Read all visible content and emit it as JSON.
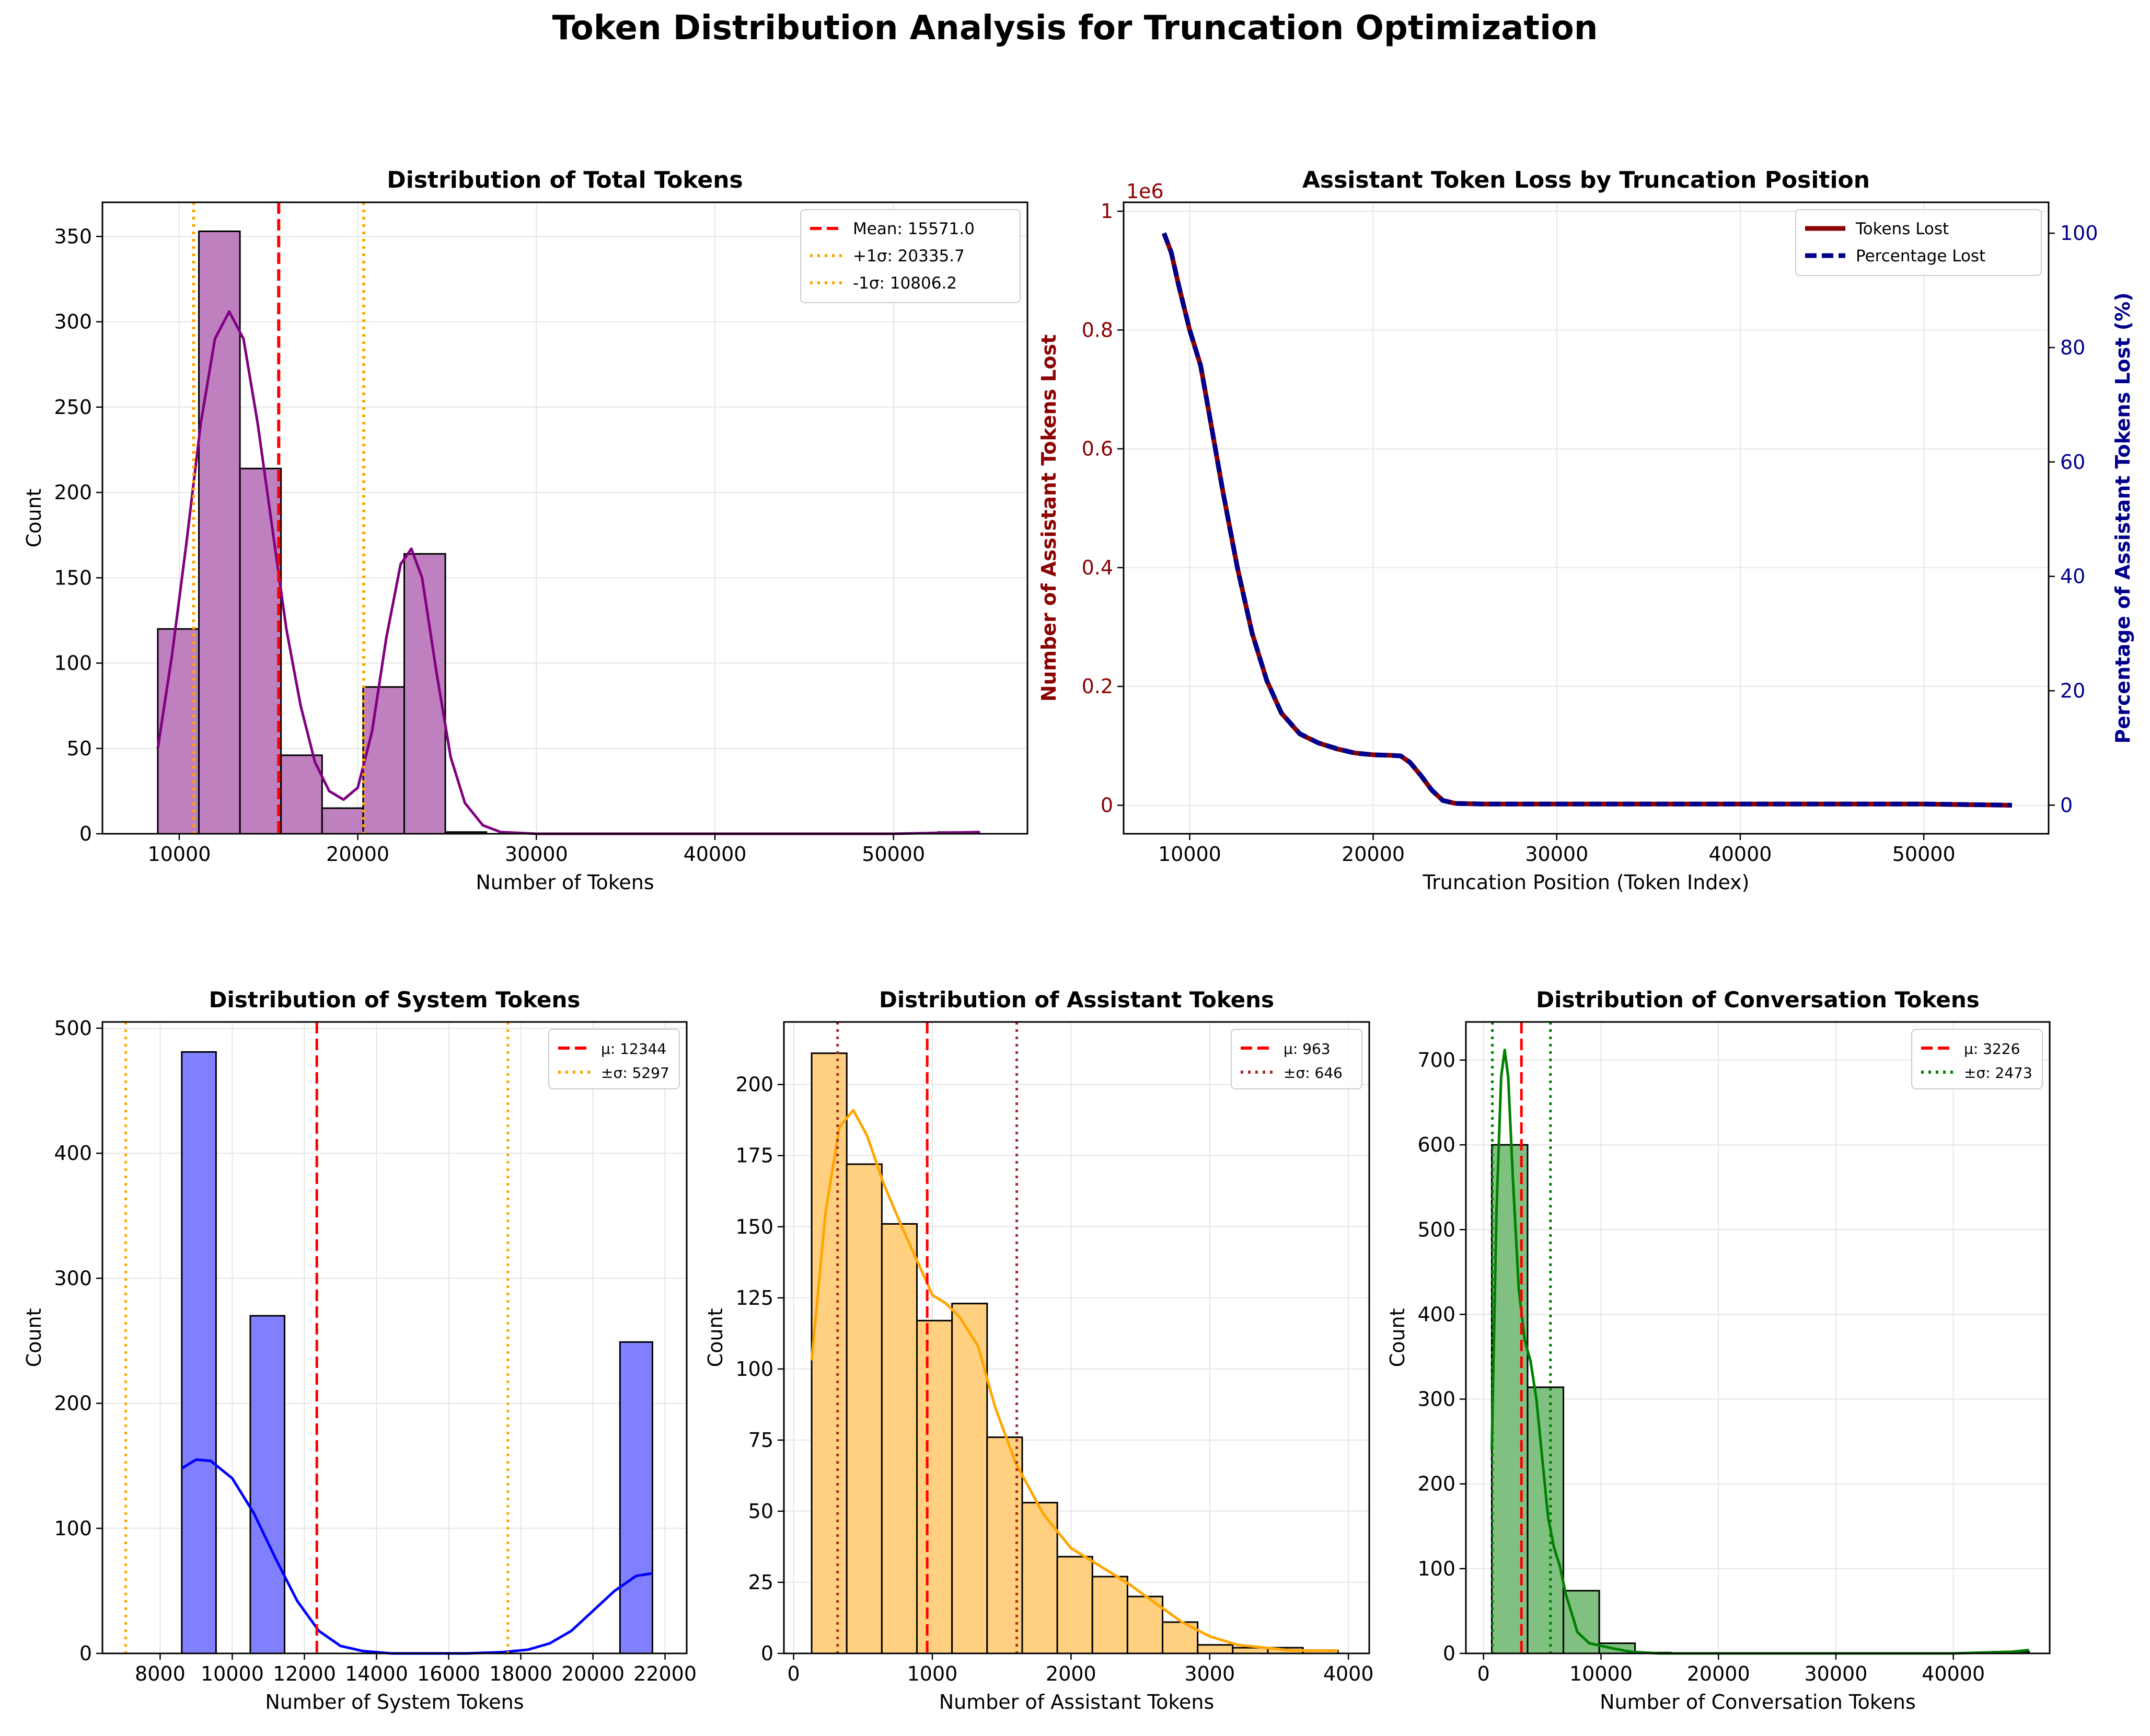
{
  "figure": {
    "title": "Token Distribution Analysis for Truncation Optimization"
  },
  "chart_data": [
    {
      "id": "total",
      "type": "bar",
      "subtype": "histogram",
      "title": "Distribution of Total Tokens",
      "xlabel": "Number of Tokens",
      "ylabel": "Count",
      "xlim": [
        5700,
        57500
      ],
      "ylim": [
        0,
        370
      ],
      "xticks": [
        10000,
        20000,
        30000,
        40000,
        50000
      ],
      "yticks": [
        0,
        50,
        100,
        150,
        200,
        250,
        300,
        350
      ],
      "grid": true,
      "bar_color": "#bf80bf",
      "kde_color": "#800080",
      "bin_edges": [
        8800,
        11100,
        13400,
        15700,
        18000,
        20300,
        22600,
        24900,
        27200,
        29500,
        31800,
        34100,
        36400,
        38700,
        41000,
        43300,
        45600,
        47900,
        50200,
        52500,
        54800
      ],
      "counts": [
        120,
        353,
        214,
        46,
        15,
        86,
        164,
        1,
        0,
        0,
        0,
        0,
        0,
        0,
        0,
        0,
        0,
        0,
        0,
        1
      ],
      "kde": {
        "x": [
          8800,
          9600,
          10400,
          11200,
          12000,
          12800,
          13600,
          14400,
          15200,
          16000,
          16800,
          17600,
          18400,
          19200,
          20000,
          20800,
          21600,
          22400,
          23000,
          23600,
          24400,
          25200,
          26000,
          27000,
          28000,
          30000,
          35000,
          40000,
          45000,
          50000,
          54800
        ],
        "y": [
          50,
          105,
          170,
          240,
          290,
          306,
          290,
          240,
          180,
          120,
          75,
          42,
          25,
          20,
          27,
          60,
          115,
          158,
          167,
          150,
          95,
          45,
          18,
          5,
          1,
          0,
          0,
          0,
          0,
          0,
          1
        ]
      },
      "vlines": [
        {
          "label": "Mean: 15571.0",
          "x": 15571.0,
          "color": "#ff0000",
          "style": "dashed"
        },
        {
          "label": "+1σ: 20335.7",
          "x": 20335.7,
          "color": "#ffa500",
          "style": "dotted"
        },
        {
          "label": "-1σ: 10806.2",
          "x": 10806.2,
          "color": "#ffa500",
          "style": "dotted"
        }
      ],
      "legend_loc": "top-right"
    },
    {
      "id": "loss",
      "type": "line",
      "title": "Assistant Token Loss by Truncation Position",
      "xlabel": "Truncation Position (Token Index)",
      "ylabel": "Number of Assistant Tokens Lost",
      "ylabel_right": "Percentage of Assistant Tokens Lost (%)",
      "offset_text": "1e6",
      "xlim": [
        6400,
        56800
      ],
      "ylim": [
        -0.048,
        1.015
      ],
      "ylim_right": [
        -5,
        105.4
      ],
      "xticks": [
        10000,
        20000,
        30000,
        40000,
        50000
      ],
      "yticks": [
        0.0,
        0.2,
        0.4,
        0.6,
        0.8,
        1.0
      ],
      "yticks_right": [
        0,
        20,
        40,
        60,
        80,
        100
      ],
      "grid": true,
      "x": [
        8600,
        9000,
        9400,
        10000,
        10600,
        11000,
        11800,
        12600,
        13400,
        14200,
        15000,
        16000,
        17000,
        18000,
        19000,
        20000,
        21000,
        21500,
        22000,
        22600,
        23200,
        23800,
        24500,
        26000,
        30000,
        35000,
        40000,
        45000,
        50000,
        54800
      ],
      "series": [
        {
          "name": "Tokens Lost",
          "color": "#8b0000",
          "style": "solid",
          "axis": "left",
          "values": [
            0.963,
            0.93,
            0.875,
            0.8,
            0.74,
            0.67,
            0.53,
            0.4,
            0.29,
            0.21,
            0.155,
            0.12,
            0.105,
            0.095,
            0.088,
            0.085,
            0.084,
            0.083,
            0.072,
            0.05,
            0.025,
            0.008,
            0.003,
            0.002,
            0.002,
            0.002,
            0.002,
            0.002,
            0.002,
            0.0
          ]
        },
        {
          "name": "Percentage Lost",
          "color": "#00008b",
          "style": "dashed",
          "axis": "right",
          "values": [
            100,
            96.6,
            90.9,
            83.1,
            76.8,
            69.6,
            55.0,
            41.5,
            30.1,
            21.8,
            16.1,
            12.5,
            10.9,
            9.9,
            9.1,
            8.8,
            8.7,
            8.6,
            7.5,
            5.2,
            2.6,
            0.8,
            0.3,
            0.2,
            0.2,
            0.2,
            0.2,
            0.2,
            0.2,
            0.0
          ]
        }
      ],
      "legend_loc": "top-right"
    },
    {
      "id": "system",
      "type": "bar",
      "subtype": "histogram",
      "title": "Distribution of System Tokens",
      "xlabel": "Number of System Tokens",
      "ylabel": "Count",
      "xlim": [
        6400,
        22600
      ],
      "ylim": [
        0,
        505
      ],
      "xticks": [
        8000,
        10000,
        12000,
        14000,
        16000,
        18000,
        20000,
        22000
      ],
      "yticks": [
        0,
        100,
        200,
        300,
        400,
        500
      ],
      "grid": true,
      "bar_color": "#8080ff",
      "kde_color": "#0000ff",
      "bin_edges": [
        8600,
        9550,
        10500,
        11450,
        12400,
        13350,
        14300,
        15250,
        16200,
        17150,
        18100,
        19050,
        20000,
        20750,
        21650
      ],
      "counts": [
        481,
        0,
        270,
        0,
        0,
        0,
        0,
        0,
        0,
        0,
        0,
        0,
        0,
        249
      ],
      "kde": {
        "x": [
          8600,
          9000,
          9400,
          10000,
          10600,
          11200,
          11800,
          12400,
          13000,
          13600,
          14400,
          15500,
          16500,
          17500,
          18200,
          18800,
          19400,
          20000,
          20600,
          21200,
          21650
        ],
        "y": [
          148,
          155,
          154,
          140,
          112,
          76,
          42,
          18,
          6,
          2,
          0,
          0,
          0,
          1,
          3,
          8,
          18,
          34,
          50,
          62,
          64
        ]
      },
      "vlines": [
        {
          "label": "μ: 12344",
          "x": 12344,
          "color": "#ff0000",
          "style": "dashed"
        },
        {
          "label": "±σ: 5297",
          "x": 17641,
          "color": "#ffa500",
          "style": "dotted"
        },
        {
          "label": "",
          "x": 7047,
          "color": "#ffa500",
          "style": "dotted"
        }
      ],
      "legend_loc": "top-right"
    },
    {
      "id": "assistant",
      "type": "bar",
      "subtype": "histogram",
      "title": "Distribution of Assistant Tokens",
      "xlabel": "Number of Assistant Tokens",
      "ylabel": "Count",
      "xlim": [
        -70,
        4150
      ],
      "ylim": [
        0,
        222
      ],
      "xticks": [
        0,
        1000,
        2000,
        3000,
        4000
      ],
      "yticks": [
        0,
        25,
        50,
        75,
        100,
        125,
        150,
        175,
        200
      ],
      "grid": true,
      "bar_color": "#ffd080",
      "kde_color": "#ffa500",
      "bin_edges": [
        130,
        383,
        636,
        889,
        1142,
        1395,
        1648,
        1901,
        2154,
        2407,
        2660,
        2913,
        3166,
        3419,
        3672,
        3925
      ],
      "counts": [
        211,
        172,
        151,
        117,
        123,
        76,
        53,
        34,
        27,
        20,
        11,
        3,
        2,
        2,
        1
      ],
      "kde": {
        "x": [
          130,
          230,
          330,
          430,
          530,
          650,
          780,
          900,
          1000,
          1100,
          1200,
          1330,
          1450,
          1600,
          1800,
          2000,
          2200,
          2400,
          2600,
          2800,
          3000,
          3200,
          3400,
          3600,
          3800,
          3925
        ],
        "y": [
          103,
          155,
          185,
          191,
          182,
          165,
          150,
          137,
          126,
          123,
          118,
          108,
          87,
          67,
          49,
          37,
          31,
          25,
          18,
          11,
          6,
          3,
          2,
          1,
          1,
          1
        ]
      },
      "vlines": [
        {
          "label": "μ: 963",
          "x": 963,
          "color": "#ff0000",
          "style": "dashed"
        },
        {
          "label": "±σ: 646",
          "x": 1609,
          "color": "#a52a2a",
          "style": "dotted"
        },
        {
          "label": "",
          "x": 317,
          "color": "#a52a2a",
          "style": "dotted"
        }
      ],
      "legend_loc": "top-right"
    },
    {
      "id": "conversation",
      "type": "bar",
      "subtype": "histogram",
      "title": "Distribution of Conversation Tokens",
      "xlabel": "Number of Conversation Tokens",
      "ylabel": "Count",
      "xlim": [
        -1500,
        48200
      ],
      "ylim": [
        0,
        745
      ],
      "xticks": [
        0,
        10000,
        20000,
        30000,
        40000
      ],
      "yticks": [
        0,
        100,
        200,
        300,
        400,
        500,
        600,
        700
      ],
      "grid": true,
      "bar_color": "#80c080",
      "kde_color": "#008000",
      "bin_edges": [
        700,
        3750,
        6800,
        9850,
        12900,
        15950,
        19000,
        22050,
        25100,
        28150,
        31200,
        34250,
        37300,
        40350,
        43400,
        46450
      ],
      "counts": [
        600,
        314,
        74,
        12,
        1,
        0,
        0,
        0,
        0,
        0,
        0,
        0,
        0,
        0,
        2
      ],
      "kde": {
        "x": [
          700,
          1100,
          1500,
          1800,
          2100,
          2500,
          3000,
          3500,
          4000,
          4500,
          5000,
          5500,
          6000,
          6500,
          7000,
          8000,
          9000,
          10000,
          11000,
          12500,
          15000,
          20000,
          30000,
          40000,
          45000,
          46450
        ],
        "y": [
          240,
          520,
          680,
          712,
          680,
          560,
          430,
          370,
          345,
          300,
          230,
          160,
          125,
          103,
          70,
          25,
          12,
          9,
          6,
          2,
          0,
          0,
          0,
          0,
          2,
          4
        ]
      },
      "vlines": [
        {
          "label": "μ: 3226",
          "x": 3226,
          "color": "#ff0000",
          "style": "dashed"
        },
        {
          "label": "±σ: 2473",
          "x": 5699,
          "color": "#008000",
          "style": "dotted"
        },
        {
          "label": "",
          "x": 753,
          "color": "#008000",
          "style": "dotted"
        }
      ],
      "legend_loc": "top-right"
    }
  ]
}
